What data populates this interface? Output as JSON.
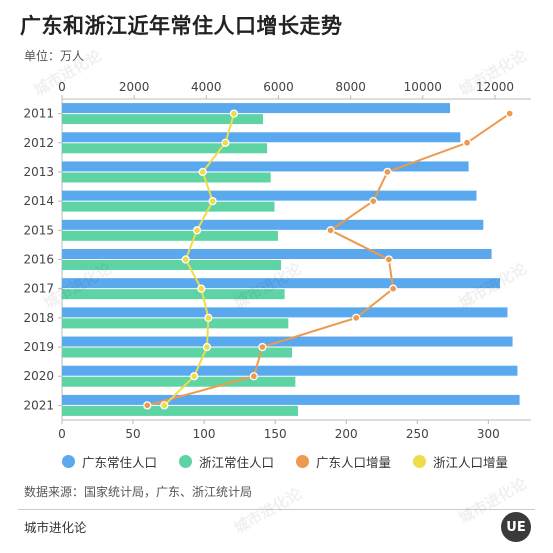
{
  "title": "广东和浙江近年常住人口增长走势",
  "unit_label": "单位：万人",
  "legend": [
    {
      "label": "广东常住人口",
      "color": "#5aa8ee"
    },
    {
      "label": "浙江常住人口",
      "color": "#5ed4a4"
    },
    {
      "label": "广东人口增量",
      "color": "#ee9a4e"
    },
    {
      "label": "浙江人口增量",
      "color": "#eedc4a"
    }
  ],
  "source": "数据来源：国家统计局，广东、浙江统计局",
  "brand": "城市进化论",
  "logo_text": "UE",
  "watermark": "城市进化论",
  "chart_data": {
    "type": "bar",
    "orientation": "horizontal",
    "categories": [
      "2011",
      "2012",
      "2013",
      "2014",
      "2015",
      "2016",
      "2017",
      "2018",
      "2019",
      "2020",
      "2021"
    ],
    "top_axis": {
      "ticks": [
        0,
        2000,
        4000,
        6000,
        8000,
        10000,
        12000
      ],
      "range": [
        0,
        13000
      ]
    },
    "bottom_axis": {
      "ticks": [
        0,
        50,
        100,
        150,
        200,
        250,
        300
      ],
      "range": [
        0,
        330
      ]
    },
    "series": [
      {
        "name": "广东常住人口",
        "type": "bar",
        "axis": "top",
        "color": "#5aa8ee",
        "values": [
          10756,
          11041,
          11270,
          11489,
          11678,
          11908,
          12141,
          12348,
          12489,
          12624,
          12684
        ]
      },
      {
        "name": "浙江常住人口",
        "type": "bar",
        "axis": "top",
        "color": "#5ed4a4",
        "values": [
          5570,
          5685,
          5784,
          5890,
          5985,
          6072,
          6170,
          6273,
          6375,
          6468,
          6540
        ]
      },
      {
        "name": "广东人口增量",
        "type": "line",
        "axis": "bottom",
        "color": "#ee9a4e",
        "values": [
          315,
          285,
          229,
          219,
          189,
          230,
          233,
          207,
          141,
          135,
          60
        ]
      },
      {
        "name": "浙江人口增量",
        "type": "line",
        "axis": "bottom",
        "color": "#eedc4a",
        "values": [
          121,
          115,
          99,
          106,
          95,
          87,
          98,
          103,
          102,
          93,
          72
        ]
      }
    ]
  }
}
